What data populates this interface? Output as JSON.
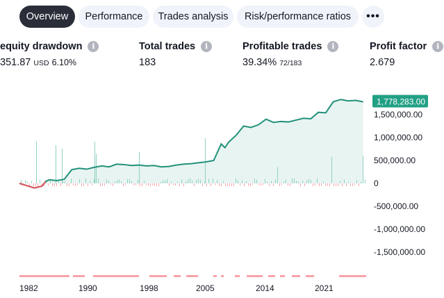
{
  "tabs": [
    {
      "label": "Overview",
      "active": true
    },
    {
      "label": "Performance",
      "active": false
    },
    {
      "label": "Trades analysis",
      "active": false
    },
    {
      "label": "Risk/performance ratios",
      "active": false
    }
  ],
  "more_label": "•••",
  "stats": {
    "drawdown": {
      "title": "equity drawdown",
      "value": "351.87",
      "unit": "USD",
      "pct": "6.10%"
    },
    "total_trades": {
      "title": "Total trades",
      "value": "183"
    },
    "profitable_trades": {
      "title": "Profitable trades",
      "value": "39.34%",
      "detail": "72/183"
    },
    "profit_factor": {
      "title": "Profit factor",
      "value": "2.679"
    }
  },
  "info_glyph": "i",
  "colors": {
    "equity": "#22917a",
    "fill": "#e8f4f1",
    "positive_bar": "#8fd1c3",
    "negative": "#f7a3a9",
    "drawdown_line": "#e0525c",
    "badge": "#22a085"
  },
  "chart_data": {
    "type": "line",
    "y_ticks": [
      "1,500,000.00",
      "1,000,000.00",
      "500,000.00",
      "0",
      "-500,000.00",
      "-1,000,000.00",
      "-1,500,000.00"
    ],
    "y_tick_values": [
      1500000,
      1000000,
      500000,
      0,
      -500000,
      -1000000,
      -1500000
    ],
    "x_ticks": [
      "1982",
      "1990",
      "1998",
      "2005",
      "2014",
      "2021"
    ],
    "last_value_label": "1,778,283.00",
    "ylim": [
      -1650000,
      2000000
    ],
    "equity": {
      "x": [
        1978,
        1979,
        1980,
        1981,
        1981.5,
        1982,
        1983,
        1984,
        1985,
        1986,
        1987,
        1988,
        1989,
        1990,
        1991,
        1992,
        1993,
        1994,
        1995,
        1996,
        1997,
        1998,
        1999,
        2000,
        2001,
        2002,
        2003,
        2004,
        2005,
        2005.5,
        2006,
        2007,
        2008,
        2009,
        2010,
        2011,
        2012,
        2013,
        2014,
        2015,
        2016,
        2017,
        2018,
        2019,
        2020,
        2021,
        2022,
        2023,
        2024
      ],
      "y": [
        0,
        -50000,
        -100000,
        -60000,
        40000,
        80000,
        60000,
        90000,
        300000,
        330000,
        310000,
        350000,
        380000,
        360000,
        420000,
        410000,
        390000,
        400000,
        380000,
        390000,
        360000,
        370000,
        400000,
        420000,
        430000,
        450000,
        470000,
        500000,
        860000,
        780000,
        900000,
        1050000,
        1250000,
        1220000,
        1280000,
        1400000,
        1330000,
        1350000,
        1340000,
        1380000,
        1420000,
        1410000,
        1550000,
        1540000,
        1780000,
        1830000,
        1800000,
        1810000,
        1778283
      ]
    }
  }
}
